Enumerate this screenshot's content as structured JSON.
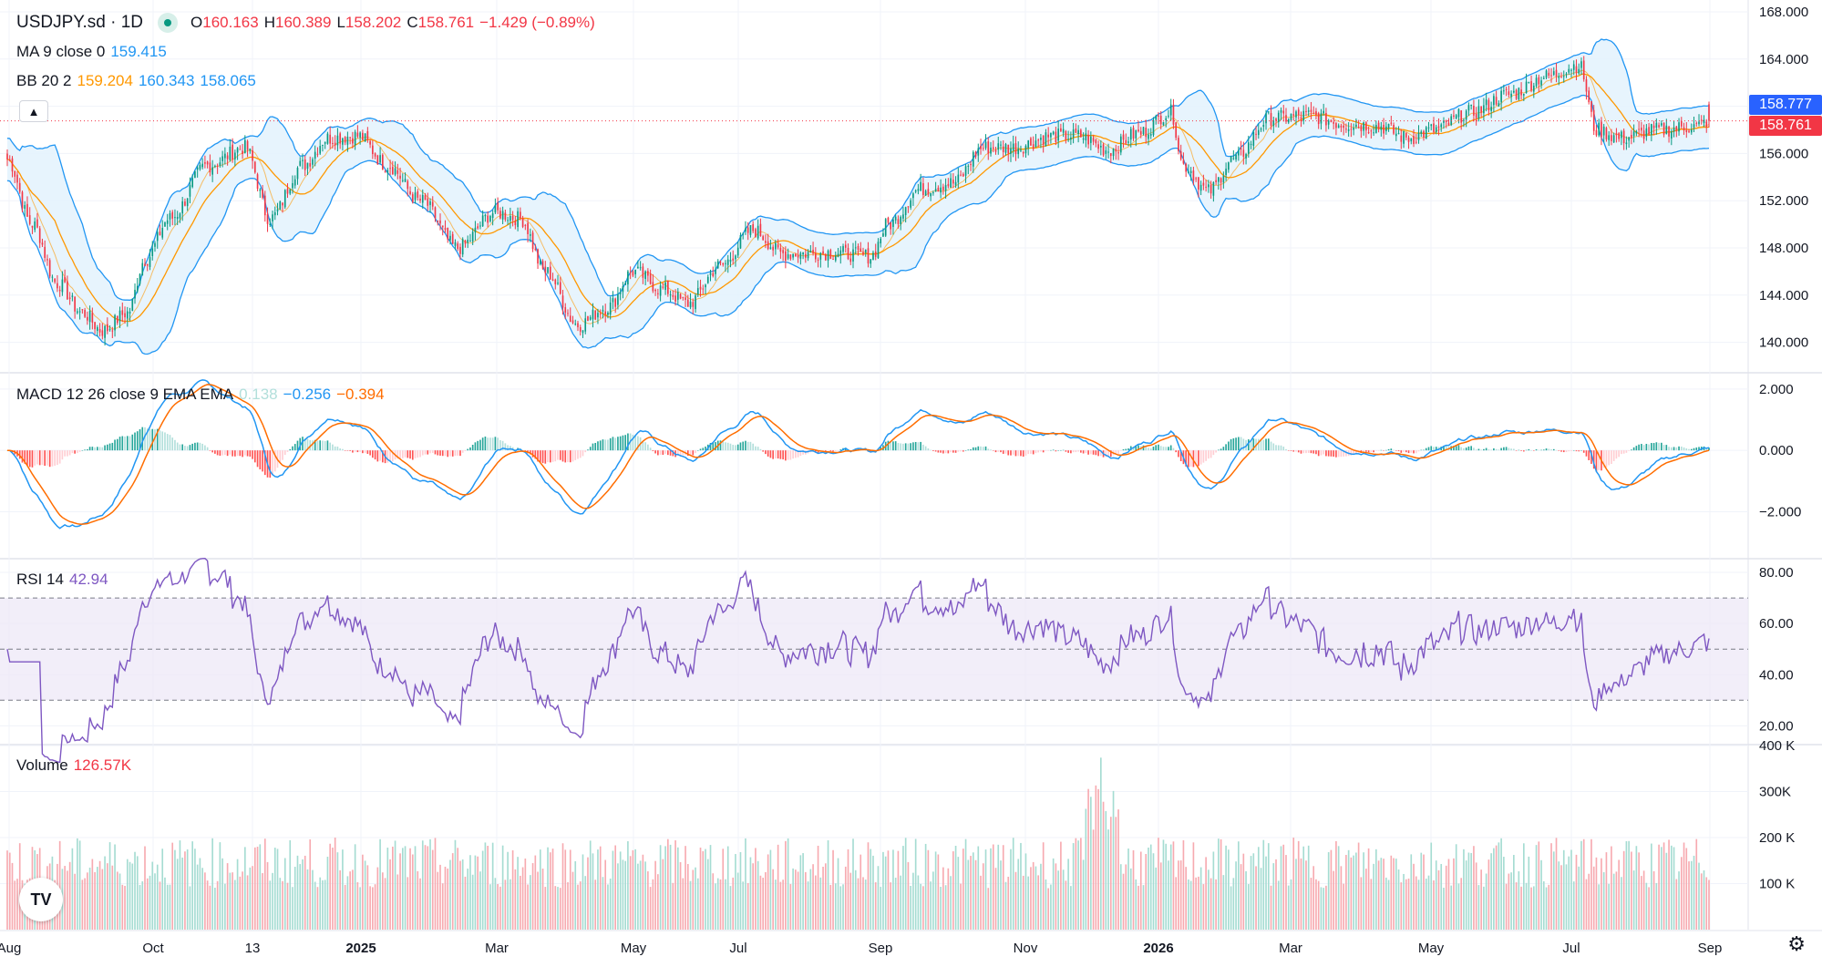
{
  "header": {
    "symbol": "USDJPY.sd · 1D",
    "status_dot_color": "#089981",
    "open_label": "O",
    "open": "160.163",
    "high_label": "H",
    "high": "160.389",
    "low_label": "L",
    "low": "158.202",
    "close_label": "C",
    "close": "158.761",
    "change": "−1.429 (−0.89%)"
  },
  "indicators": {
    "ma": {
      "label": "MA 9 close 0",
      "value": "159.415"
    },
    "bb": {
      "label": "BB 20 2",
      "basis": "159.204",
      "upper": "160.343",
      "lower": "158.065"
    },
    "macd": {
      "label": "MACD 12 26 close 9 EMA EMA",
      "hist": "0.138",
      "macd": "−0.256",
      "signal": "−0.394"
    },
    "rsi": {
      "label": "RSI 14",
      "value": "42.94"
    },
    "volume": {
      "label": "Volume",
      "value": "126.57K"
    }
  },
  "price_tags": {
    "bid": "158.777",
    "last": "158.761"
  },
  "colors": {
    "up": "#089981",
    "down": "#f23645",
    "ma": "#ff9800",
    "bb": "#2962ff",
    "bb_line": "#2196f3",
    "bb_fill": "#e3f2fd",
    "macd": "#2196f3",
    "signal": "#ff6d00",
    "rsi": "#7e57c2",
    "rsi_band": "#ede7f6",
    "bid_tag": "#2962ff",
    "last_tag": "#f23645"
  },
  "chart_data": [
    {
      "type": "candlestick",
      "pane": "price",
      "title": "USDJPY.sd · 1D",
      "x_tick_labels": [
        "Aug",
        "Oct",
        "13",
        "2025",
        "Mar",
        "May",
        "Jul",
        "Sep",
        "Nov",
        "2026",
        "Mar",
        "May",
        "Jul",
        "Sep"
      ],
      "y_tick_labels": [
        "168.000",
        "164.000",
        "160.000",
        "156.000",
        "152.000",
        "148.000",
        "144.000",
        "140.000"
      ],
      "ylim": [
        137.5,
        169
      ],
      "series": [
        {
          "name": "USDJPY.sd close (approx.)",
          "x": [
            "Aug",
            "Oct",
            "13",
            "2025",
            "Mar",
            "May",
            "Jul",
            "Sep",
            "Nov",
            "2026",
            "Mar",
            "May",
            "Jul",
            "Sep"
          ],
          "values": [
            155.5,
            143.6,
            150.0,
            157.1,
            149.5,
            142.6,
            143.9,
            147.4,
            156.0,
            157.2,
            156.5,
            157.3,
            163.0,
            158.8
          ]
        }
      ],
      "overlays": [
        "MA 9 close 0",
        "BB 20 2"
      ]
    },
    {
      "type": "line",
      "pane": "macd",
      "title": "MACD 12 26 close 9 EMA EMA",
      "y_tick_labels": [
        "2.000",
        "0.000",
        "−2.000"
      ],
      "ylim": [
        -3.5,
        2.5
      ],
      "series": [
        {
          "name": "MACD",
          "x": [
            "Aug",
            "Oct",
            "13",
            "2025",
            "Mar",
            "May",
            "Jul",
            "Sep",
            "Nov",
            "2026",
            "Mar",
            "May",
            "Jul",
            "Sep"
          ],
          "values": [
            -1.2,
            -1.8,
            1.2,
            1.3,
            -1.1,
            -1.5,
            0.6,
            0.2,
            1.3,
            0.5,
            0.8,
            0.0,
            0.7,
            -0.3
          ]
        },
        {
          "name": "Signal",
          "x": [
            "Aug",
            "Oct",
            "13",
            "2025",
            "Mar",
            "May",
            "Jul",
            "Sep",
            "Nov",
            "2026",
            "Mar",
            "May",
            "Jul",
            "Sep"
          ],
          "values": [
            -1.0,
            -1.7,
            0.9,
            1.2,
            -0.8,
            -1.3,
            0.4,
            0.2,
            1.1,
            0.6,
            0.7,
            0.1,
            0.6,
            -0.4
          ]
        }
      ]
    },
    {
      "type": "line",
      "pane": "rsi",
      "title": "RSI 14",
      "y_tick_labels": [
        "80.00",
        "60.00",
        "40.00",
        "20.00"
      ],
      "ylim": [
        13,
        85
      ],
      "bands": [
        30,
        50,
        70
      ],
      "series": [
        {
          "name": "RSI",
          "x": [
            "Aug",
            "Oct",
            "13",
            "2025",
            "Mar",
            "May",
            "Jul",
            "Sep",
            "Nov",
            "2026",
            "Mar",
            "May",
            "Jul",
            "Sep"
          ],
          "values": [
            30,
            38,
            65,
            62,
            38,
            40,
            55,
            52,
            62,
            50,
            58,
            45,
            66,
            43
          ]
        }
      ]
    },
    {
      "type": "bar",
      "pane": "volume",
      "title": "Volume",
      "y_tick_labels": [
        "400 K",
        "300K",
        "200 K",
        "100 K"
      ],
      "ylim": [
        0,
        400000
      ],
      "series": [
        {
          "name": "Volume",
          "x": [
            "Aug",
            "Oct",
            "13",
            "2025",
            "Mar",
            "May",
            "Jul",
            "Sep",
            "Nov",
            "2026",
            "Mar",
            "May",
            "Jul",
            "Sep"
          ],
          "values": [
            160000,
            120000,
            100000,
            110000,
            95000,
            150000,
            150000,
            150000,
            160000,
            140000,
            160000,
            150000,
            120000,
            126570
          ]
        }
      ]
    }
  ]
}
